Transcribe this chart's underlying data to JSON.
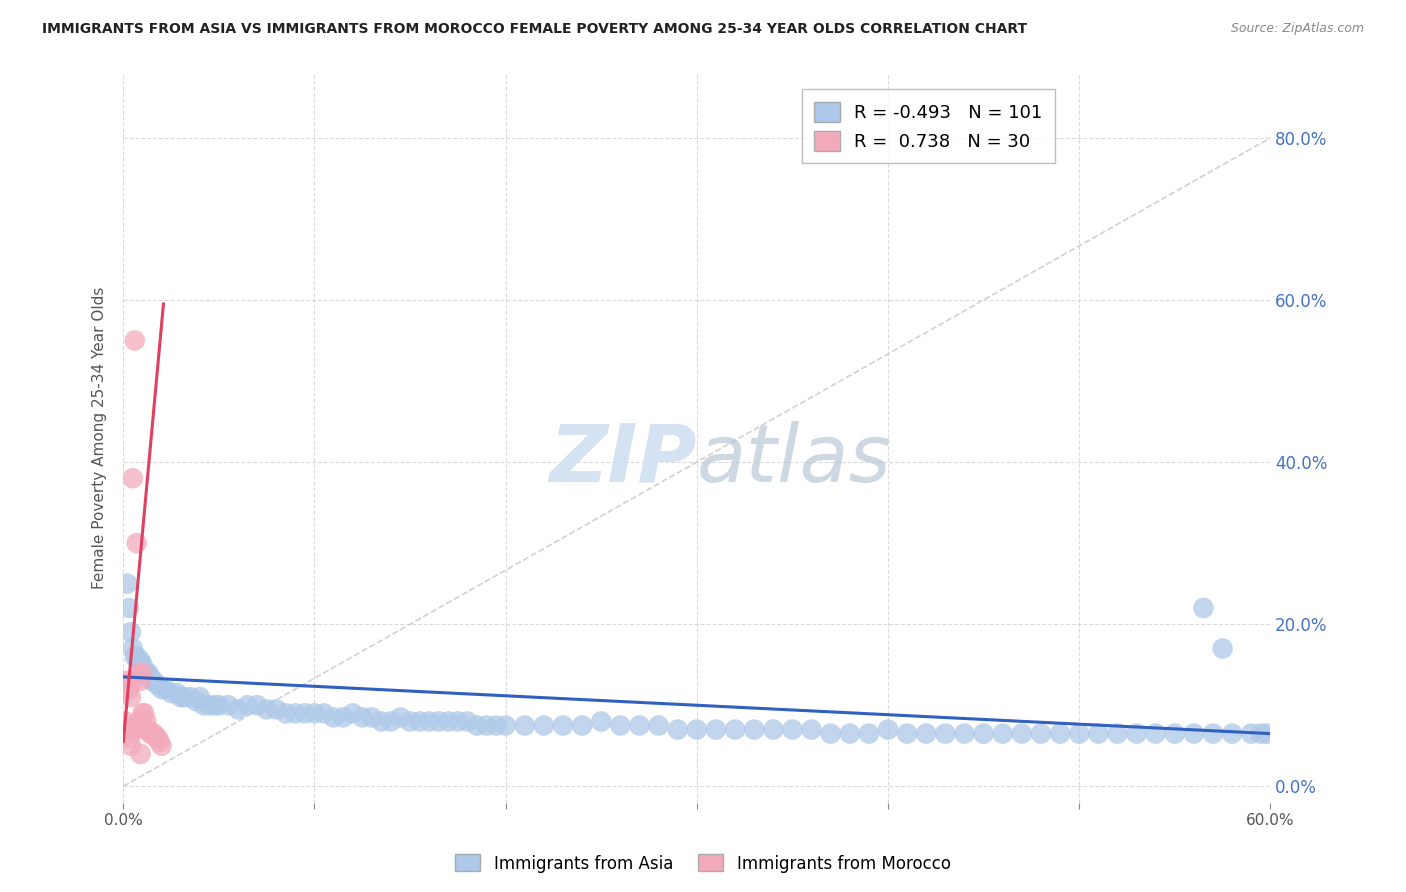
{
  "title": "IMMIGRANTS FROM ASIA VS IMMIGRANTS FROM MOROCCO FEMALE POVERTY AMONG 25-34 YEAR OLDS CORRELATION CHART",
  "source": "Source: ZipAtlas.com",
  "ylabel": "Female Poverty Among 25-34 Year Olds",
  "xlim": [
    0.0,
    0.6
  ],
  "ylim": [
    -0.02,
    0.88
  ],
  "yticks": [
    0.0,
    0.2,
    0.4,
    0.6,
    0.8
  ],
  "ytick_labels_right": [
    "0.0%",
    "20.0%",
    "40.0%",
    "60.0%",
    "80.0%"
  ],
  "xtick_labels_bottom": [
    "0.0%",
    "",
    "",
    "",
    "",
    "",
    "60.0%"
  ],
  "xticks": [
    0.0,
    0.1,
    0.2,
    0.3,
    0.4,
    0.5,
    0.6
  ],
  "legend_asia_r": "-0.493",
  "legend_asia_n": "101",
  "legend_morocco_r": "0.738",
  "legend_morocco_n": "30",
  "asia_color": "#adc8e8",
  "morocco_color": "#f2aabb",
  "asia_line_color": "#3060c0",
  "morocco_line_color": "#e04060",
  "watermark_color": "#d0dff0",
  "background_color": "#ffffff",
  "grid_color": "#cccccc",
  "title_fontsize": 10.5,
  "axis_label_color": "#555555",
  "right_tick_color": "#4472c4",
  "bottom_tick_label_color": "#555555",
  "asia_scatter_x": [
    0.002,
    0.003,
    0.004,
    0.005,
    0.006,
    0.007,
    0.008,
    0.009,
    0.01,
    0.012,
    0.013,
    0.014,
    0.015,
    0.016,
    0.018,
    0.02,
    0.022,
    0.025,
    0.028,
    0.03,
    0.032,
    0.035,
    0.038,
    0.04,
    0.042,
    0.045,
    0.048,
    0.05,
    0.055,
    0.06,
    0.065,
    0.07,
    0.075,
    0.08,
    0.085,
    0.09,
    0.095,
    0.1,
    0.105,
    0.11,
    0.115,
    0.12,
    0.125,
    0.13,
    0.135,
    0.14,
    0.145,
    0.15,
    0.155,
    0.16,
    0.165,
    0.17,
    0.175,
    0.18,
    0.185,
    0.19,
    0.195,
    0.2,
    0.21,
    0.22,
    0.23,
    0.24,
    0.25,
    0.26,
    0.27,
    0.28,
    0.29,
    0.3,
    0.31,
    0.32,
    0.33,
    0.34,
    0.35,
    0.36,
    0.37,
    0.38,
    0.39,
    0.4,
    0.41,
    0.42,
    0.43,
    0.44,
    0.45,
    0.46,
    0.47,
    0.48,
    0.49,
    0.5,
    0.51,
    0.52,
    0.53,
    0.54,
    0.55,
    0.56,
    0.565,
    0.57,
    0.575,
    0.58,
    0.59,
    0.595,
    0.598
  ],
  "asia_scatter_y": [
    0.25,
    0.22,
    0.19,
    0.17,
    0.16,
    0.16,
    0.155,
    0.155,
    0.15,
    0.14,
    0.14,
    0.135,
    0.13,
    0.13,
    0.125,
    0.12,
    0.12,
    0.115,
    0.115,
    0.11,
    0.11,
    0.11,
    0.105,
    0.11,
    0.1,
    0.1,
    0.1,
    0.1,
    0.1,
    0.095,
    0.1,
    0.1,
    0.095,
    0.095,
    0.09,
    0.09,
    0.09,
    0.09,
    0.09,
    0.085,
    0.085,
    0.09,
    0.085,
    0.085,
    0.08,
    0.08,
    0.085,
    0.08,
    0.08,
    0.08,
    0.08,
    0.08,
    0.08,
    0.08,
    0.075,
    0.075,
    0.075,
    0.075,
    0.075,
    0.075,
    0.075,
    0.075,
    0.08,
    0.075,
    0.075,
    0.075,
    0.07,
    0.07,
    0.07,
    0.07,
    0.07,
    0.07,
    0.07,
    0.07,
    0.065,
    0.065,
    0.065,
    0.07,
    0.065,
    0.065,
    0.065,
    0.065,
    0.065,
    0.065,
    0.065,
    0.065,
    0.065,
    0.065,
    0.065,
    0.065,
    0.065,
    0.065,
    0.065,
    0.065,
    0.22,
    0.065,
    0.17,
    0.065,
    0.065,
    0.065,
    0.065
  ],
  "morocco_scatter_x": [
    0.001,
    0.001,
    0.002,
    0.002,
    0.003,
    0.003,
    0.004,
    0.004,
    0.005,
    0.005,
    0.006,
    0.006,
    0.007,
    0.007,
    0.008,
    0.008,
    0.009,
    0.009,
    0.01,
    0.01,
    0.011,
    0.012,
    0.013,
    0.014,
    0.015,
    0.016,
    0.017,
    0.018,
    0.019,
    0.02
  ],
  "morocco_scatter_y": [
    0.12,
    0.08,
    0.13,
    0.07,
    0.12,
    0.06,
    0.11,
    0.05,
    0.13,
    0.38,
    0.55,
    0.07,
    0.3,
    0.07,
    0.14,
    0.08,
    0.13,
    0.04,
    0.14,
    0.09,
    0.09,
    0.08,
    0.07,
    0.065,
    0.065,
    0.065,
    0.06,
    0.06,
    0.055,
    0.05
  ],
  "asia_trend_x": [
    0.0,
    0.6
  ],
  "asia_trend_y": [
    0.135,
    0.065
  ],
  "morocco_trend_x": [
    0.0,
    0.021
  ],
  "morocco_trend_y": [
    0.055,
    0.595
  ],
  "diag_line_x": [
    0.0,
    0.6
  ],
  "diag_line_y": [
    0.0,
    0.8
  ]
}
